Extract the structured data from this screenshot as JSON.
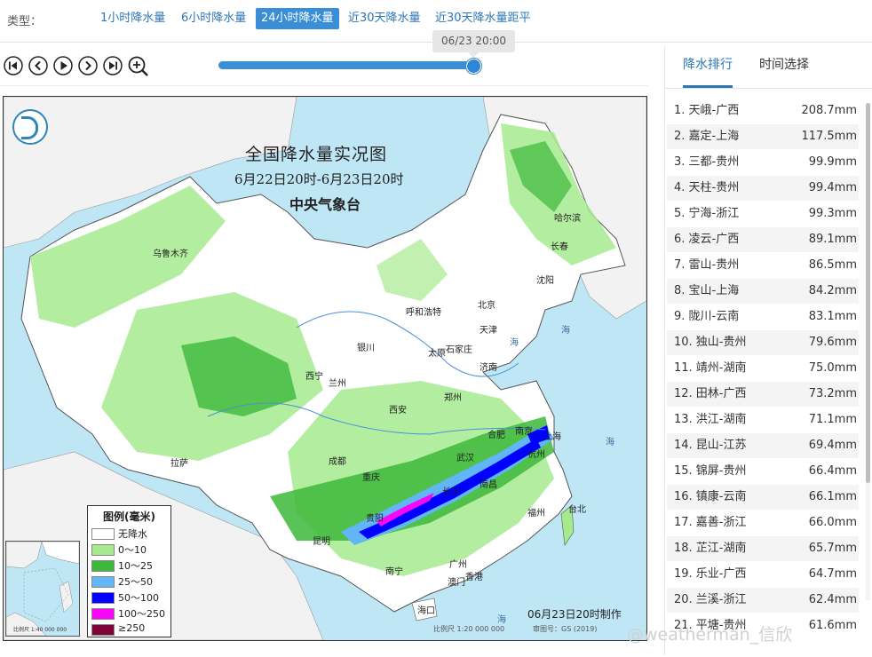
{
  "typebar": {
    "label": "类型：",
    "tabs": [
      {
        "label": "1小时降水量"
      },
      {
        "label": "6小时降水量"
      },
      {
        "label": "24小时降水量",
        "active": true
      },
      {
        "label": "近30天降水量"
      },
      {
        "label": "近30天降水量距平"
      }
    ]
  },
  "timeline": {
    "current_time": "06/23 20:00",
    "progress": 1.0
  },
  "controls": [
    {
      "icon": "skip-start-icon"
    },
    {
      "icon": "prev-icon"
    },
    {
      "icon": "play-icon"
    },
    {
      "icon": "next-icon"
    },
    {
      "icon": "skip-end-icon"
    },
    {
      "icon": "zoom-in-icon"
    }
  ],
  "map": {
    "title": "全国降水量实况图",
    "period": "6月22日20时-6月23日20时",
    "issuer": "中央气象台",
    "made_time": "06月23日20时制作",
    "scale": "比例尺 1:20 000 000",
    "review_no": "审图号：GS (2019)",
    "inset_scale": "比例尺 1:40 000 000",
    "cities": [
      "乌鲁木齐",
      "哈尔滨",
      "长春",
      "沈阳",
      "呼和浩特",
      "北京",
      "天津",
      "银川",
      "太原",
      "石家庄",
      "济南",
      "西宁",
      "兰州",
      "郑州",
      "西安",
      "合肥",
      "南京",
      "上海",
      "武汉",
      "杭州",
      "成都",
      "重庆",
      "拉萨",
      "长沙",
      "南昌",
      "贵阳",
      "福州",
      "台北",
      "昆明",
      "南宁",
      "广州",
      "澳门",
      "香港",
      "海口"
    ],
    "seas": [
      "海",
      "海",
      "海",
      "海"
    ],
    "legend": {
      "title": "图例(毫米)",
      "items": [
        {
          "label": "无降水",
          "color": "#ffffff"
        },
        {
          "label": "0～10",
          "color": "#a6ea8e"
        },
        {
          "label": "10～25",
          "color": "#3db83b"
        },
        {
          "label": "25～50",
          "color": "#61b6f6"
        },
        {
          "label": "50～100",
          "color": "#0000fe"
        },
        {
          "label": "100～250",
          "color": "#f905f8"
        },
        {
          "label": "≥250",
          "color": "#7f0437"
        }
      ]
    }
  },
  "panel": {
    "tabs": [
      {
        "label": "降水排行",
        "active": true
      },
      {
        "label": "时间选择"
      }
    ],
    "ranking": [
      {
        "name": "1. 天峨-广西",
        "value": "208.7mm"
      },
      {
        "name": "2. 嘉定-上海",
        "value": "117.5mm"
      },
      {
        "name": "3. 三都-贵州",
        "value": "99.9mm"
      },
      {
        "name": "4. 天柱-贵州",
        "value": "99.4mm"
      },
      {
        "name": "5. 宁海-浙江",
        "value": "99.3mm"
      },
      {
        "name": "6. 凌云-广西",
        "value": "89.1mm"
      },
      {
        "name": "7. 雷山-贵州",
        "value": "86.5mm"
      },
      {
        "name": "8. 宝山-上海",
        "value": "84.2mm"
      },
      {
        "name": "9. 陇川-云南",
        "value": "83.1mm"
      },
      {
        "name": "10. 独山-贵州",
        "value": "79.6mm"
      },
      {
        "name": "11. 靖州-湖南",
        "value": "75.0mm"
      },
      {
        "name": "12. 田林-广西",
        "value": "73.2mm"
      },
      {
        "name": "13. 洪江-湖南",
        "value": "71.1mm"
      },
      {
        "name": "14. 昆山-江苏",
        "value": "69.4mm"
      },
      {
        "name": "15. 锦屏-贵州",
        "value": "66.4mm"
      },
      {
        "name": "16. 镇康-云南",
        "value": "66.1mm"
      },
      {
        "name": "17. 嘉善-浙江",
        "value": "66.0mm"
      },
      {
        "name": "18. 芷江-湖南",
        "value": "65.7mm"
      },
      {
        "name": "19. 乐业-广西",
        "value": "64.7mm"
      },
      {
        "name": "20. 兰溪-浙江",
        "value": "62.4mm"
      },
      {
        "name": "21. 平塘-贵州",
        "value": "61.6mm"
      }
    ]
  },
  "watermark": "@weatherman_信欣"
}
